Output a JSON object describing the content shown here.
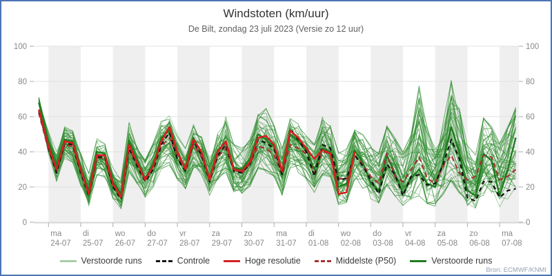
{
  "header": {
    "title": "Windstoten (km/uur)",
    "subtitle": "De Bilt, zondag 23 juli 2023 (Versie zo 12 uur)"
  },
  "source_note": "Bron: ECMWF/KNMI",
  "legend": [
    {
      "label": "Verstoorde runs",
      "color": "#a6cfa6",
      "dash": false
    },
    {
      "label": "Controle",
      "color": "#151515",
      "dash": true
    },
    {
      "label": "Hoge resolutie",
      "color": "#d42020",
      "dash": false
    },
    {
      "label": "Middelste (P50)",
      "color": "#a63232",
      "dash": true
    },
    {
      "label": "Verstoorde runs",
      "color": "#1e7d1e",
      "dash": false
    }
  ],
  "colors": {
    "border": "#4a74b4",
    "band": "#efefef",
    "grid": "#e2e2e2",
    "axis": "#c8c8c8",
    "tick": "#aaaaaa",
    "label": "#888888",
    "member": "#2e8b2e",
    "bold_member": "#1e7d1e",
    "control": "#151515",
    "hires": "#d42020",
    "p50": "#a63232"
  },
  "chart_data": {
    "type": "line",
    "title": "Windstoten (km/uur)",
    "subtitle": "De Bilt, zondag 23 juli 2023 (Versie zo 12 uur)",
    "ylabel": "km/uur",
    "ylim": [
      0,
      100
    ],
    "yticks": [
      0,
      20,
      40,
      60,
      80,
      100
    ],
    "grid": true,
    "legend_position": "bottom",
    "x_days": [
      {
        "dow": "ma",
        "date": "24-07"
      },
      {
        "dow": "di",
        "date": "25-07"
      },
      {
        "dow": "wo",
        "date": "26-07"
      },
      {
        "dow": "do",
        "date": "27-07"
      },
      {
        "dow": "vr",
        "date": "28-07"
      },
      {
        "dow": "za",
        "date": "29-07"
      },
      {
        "dow": "zo",
        "date": "30-07"
      },
      {
        "dow": "ma",
        "date": "31-07"
      },
      {
        "dow": "di",
        "date": "01-08"
      },
      {
        "dow": "wo",
        "date": "02-08"
      },
      {
        "dow": "do",
        "date": "03-08"
      },
      {
        "dow": "vr",
        "date": "04-08"
      },
      {
        "dow": "za",
        "date": "05-08"
      },
      {
        "dow": "zo",
        "date": "06-08"
      },
      {
        "dow": "ma",
        "date": "07-08"
      }
    ],
    "t_days_from_ma2407": [
      -0.3,
      0,
      0.25,
      0.5,
      0.75,
      1,
      1.25,
      1.5,
      1.75,
      2,
      2.25,
      2.5,
      2.75,
      3,
      3.25,
      3.5,
      3.75,
      4,
      4.25,
      4.5,
      4.75,
      5,
      5.25,
      5.5,
      5.75,
      6,
      6.25,
      6.5,
      6.75,
      7,
      7.25,
      7.5,
      7.75,
      8,
      8.25,
      8.5,
      8.75,
      9,
      9.25,
      9.5,
      9.75,
      10,
      10.25,
      10.5,
      10.75,
      11,
      11.25,
      11.5,
      11.75,
      12,
      12.25,
      12.5,
      12.75,
      13,
      13.25,
      13.5,
      13.75,
      14,
      14.25,
      14.5
    ],
    "series": [
      {
        "name": "Hoge resolutie",
        "values": [
          64,
          43,
          30,
          46,
          45,
          30,
          16,
          38,
          38,
          22,
          14,
          44,
          34,
          24,
          32,
          46,
          54,
          40,
          30,
          47,
          40,
          24,
          40,
          46,
          30,
          29,
          34,
          48,
          49,
          44,
          29,
          52,
          48,
          42,
          36,
          41,
          39,
          16,
          17,
          40,
          null,
          null,
          null,
          null,
          null,
          null,
          null,
          null,
          null,
          null,
          null,
          null,
          null,
          null,
          null,
          null,
          null,
          null,
          null,
          null
        ]
      },
      {
        "name": "Controle",
        "values": [
          63,
          42,
          28,
          45,
          44,
          28,
          15,
          37,
          37,
          20,
          13,
          42,
          32,
          23,
          30,
          44,
          51,
          36,
          29,
          46,
          38,
          23,
          38,
          44,
          29,
          28,
          33,
          47,
          45,
          42,
          27,
          53,
          47,
          40,
          26,
          44,
          42,
          24,
          25,
          38,
          32,
          24,
          16,
          33,
          27,
          15,
          26,
          27,
          21,
          22,
          33,
          47,
          36,
          14,
          12,
          23,
          23,
          14,
          18,
          19
        ]
      },
      {
        "name": "Middelste (P50)",
        "values": [
          62,
          41,
          29,
          44,
          43,
          29,
          17,
          37,
          36,
          21,
          15,
          41,
          33,
          25,
          31,
          43,
          48,
          37,
          30,
          44,
          37,
          25,
          37,
          42,
          30,
          28,
          33,
          43,
          42,
          38,
          27,
          44,
          42,
          39,
          28,
          40,
          39,
          25,
          24,
          38,
          33,
          26,
          22,
          39,
          26,
          23,
          30,
          37,
          25,
          22,
          32,
          38,
          28,
          24,
          26,
          38,
          37,
          24,
          26,
          30
        ]
      },
      {
        "name": "Verstoorde runs (dik)",
        "values": [
          68,
          45,
          32,
          47,
          46,
          31,
          18,
          40,
          39,
          23,
          16,
          46,
          35,
          25,
          33,
          48,
          52,
          39,
          31,
          48,
          39,
          25,
          41,
          45,
          31,
          30,
          36,
          50,
          47,
          43,
          28,
          50,
          46,
          41,
          30,
          42,
          40,
          20,
          22,
          41,
          34,
          22,
          18,
          38,
          28,
          16,
          25,
          30,
          22,
          20,
          35,
          54,
          40,
          18,
          15,
          39,
          35,
          15,
          30,
          48
        ]
      }
    ],
    "ensemble_envelope": {
      "n_members": 48,
      "max": [
        71,
        52,
        40,
        55,
        52,
        40,
        28,
        48,
        46,
        32,
        26,
        58,
        44,
        36,
        45,
        58,
        62,
        50,
        42,
        56,
        50,
        38,
        52,
        60,
        45,
        42,
        48,
        62,
        65,
        55,
        42,
        62,
        56,
        50,
        45,
        60,
        55,
        40,
        42,
        55,
        50,
        45,
        40,
        55,
        48,
        40,
        50,
        79,
        55,
        45,
        60,
        82,
        65,
        45,
        40,
        60,
        55,
        45,
        55,
        66
      ],
      "min": [
        60,
        38,
        22,
        36,
        33,
        20,
        9,
        26,
        25,
        13,
        8,
        28,
        22,
        14,
        20,
        30,
        32,
        24,
        18,
        30,
        25,
        14,
        24,
        28,
        17,
        15,
        20,
        30,
        28,
        25,
        15,
        30,
        28,
        24,
        16,
        26,
        25,
        10,
        11,
        24,
        18,
        13,
        10,
        20,
        14,
        8,
        12,
        14,
        10,
        9,
        15,
        22,
        16,
        9,
        8,
        15,
        14,
        8,
        12,
        18
      ]
    }
  }
}
